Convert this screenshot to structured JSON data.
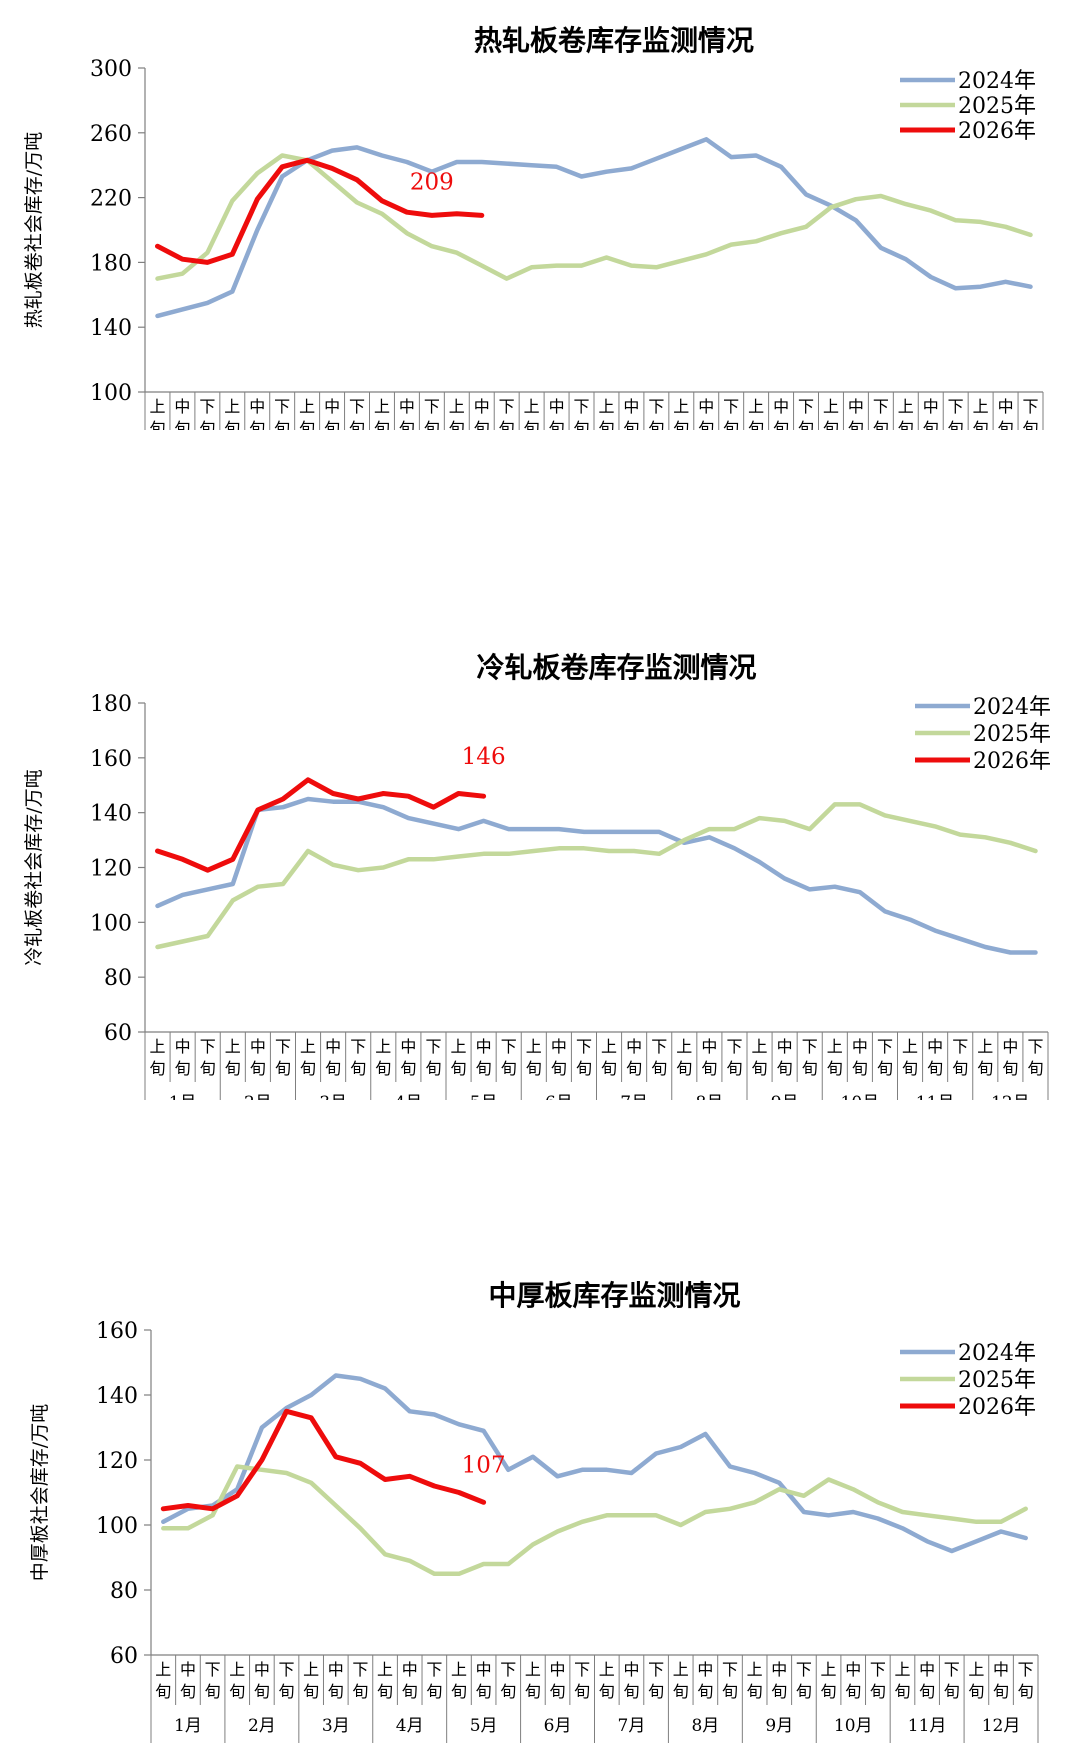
{
  "colors": {
    "s2024": "#8eaad1",
    "s2025": "#c3d89b",
    "s2026": "#ee0c0c"
  },
  "x_axis": {
    "months": [
      "1月",
      "2月",
      "3月",
      "4月",
      "5月",
      "6月",
      "7月",
      "8月",
      "9月",
      "10月",
      "11月",
      "12月"
    ],
    "decades": [
      "上\n旬",
      "中\n旬",
      "下\n旬"
    ]
  },
  "chart_data": [
    {
      "type": "line",
      "title": "热轧板卷库存监测情况",
      "ylabel": "热轧板卷社会库存/万吨",
      "ylim": [
        100,
        300
      ],
      "yticks": [
        100,
        140,
        180,
        220,
        260,
        300
      ],
      "series": [
        {
          "name": "2024年",
          "values": [
            147,
            151,
            155,
            162,
            200,
            233,
            243,
            249,
            251,
            246,
            242,
            236,
            242,
            242,
            241,
            240,
            239,
            233,
            236,
            238,
            244,
            250,
            256,
            245,
            246,
            239,
            222,
            215,
            206,
            189,
            182,
            171,
            164,
            165,
            168,
            165
          ]
        },
        {
          "name": "2025年",
          "values": [
            170,
            173,
            186,
            218,
            235,
            246,
            243,
            230,
            217,
            210,
            198,
            190,
            186,
            178,
            170,
            177,
            178,
            178,
            183,
            178,
            177,
            181,
            185,
            191,
            193,
            198,
            202,
            214,
            219,
            221,
            216,
            212,
            206,
            205,
            202,
            197
          ]
        },
        {
          "name": "2026年",
          "values": [
            190,
            182,
            180,
            185,
            219,
            239,
            243,
            238,
            231,
            218,
            211,
            209,
            210,
            209
          ]
        }
      ],
      "annotation": "209"
    },
    {
      "type": "line",
      "title": "冷轧板卷库存监测情况",
      "ylabel": "冷轧板卷社会库存/万吨",
      "ylim": [
        60,
        180
      ],
      "yticks": [
        60,
        80,
        100,
        120,
        140,
        160,
        180
      ],
      "series": [
        {
          "name": "2024年",
          "values": [
            106,
            110,
            112,
            114,
            141,
            142,
            145,
            144,
            144,
            142,
            138,
            136,
            134,
            137,
            134,
            134,
            134,
            133,
            133,
            133,
            133,
            129,
            131,
            127,
            122,
            116,
            112,
            113,
            111,
            104,
            101,
            97,
            94,
            91,
            89,
            89
          ]
        },
        {
          "name": "2025年",
          "values": [
            91,
            93,
            95,
            108,
            113,
            114,
            126,
            121,
            119,
            120,
            123,
            123,
            124,
            125,
            125,
            126,
            127,
            127,
            126,
            126,
            125,
            130,
            134,
            134,
            138,
            137,
            134,
            143,
            143,
            139,
            137,
            135,
            132,
            131,
            129,
            126
          ]
        },
        {
          "name": "2026年",
          "values": [
            126,
            123,
            119,
            123,
            141,
            145,
            152,
            147,
            145,
            147,
            146,
            142,
            147,
            146
          ]
        }
      ],
      "annotation": "146"
    },
    {
      "type": "line",
      "title": "中厚板库存监测情况",
      "ylabel": "中厚板社会库存/万吨",
      "ylim": [
        60,
        160
      ],
      "yticks": [
        60,
        80,
        100,
        120,
        140,
        160
      ],
      "series": [
        {
          "name": "2024年",
          "values": [
            101,
            105,
            106,
            111,
            130,
            136,
            140,
            146,
            145,
            142,
            135,
            134,
            131,
            129,
            117,
            121,
            115,
            117,
            117,
            116,
            122,
            124,
            128,
            118,
            116,
            113,
            104,
            103,
            104,
            102,
            99,
            95,
            92,
            95,
            98,
            96
          ]
        },
        {
          "name": "2025年",
          "values": [
            99,
            99,
            103,
            118,
            117,
            116,
            113,
            106,
            99,
            91,
            89,
            85,
            85,
            88,
            88,
            94,
            98,
            101,
            103,
            103,
            103,
            100,
            104,
            105,
            107,
            111,
            109,
            114,
            111,
            107,
            104,
            103,
            102,
            101,
            101,
            105
          ]
        },
        {
          "name": "2026年",
          "values": [
            105,
            106,
            105,
            109,
            120,
            135,
            133,
            121,
            119,
            114,
            115,
            112,
            110,
            107
          ]
        }
      ],
      "annotation": "107"
    }
  ]
}
